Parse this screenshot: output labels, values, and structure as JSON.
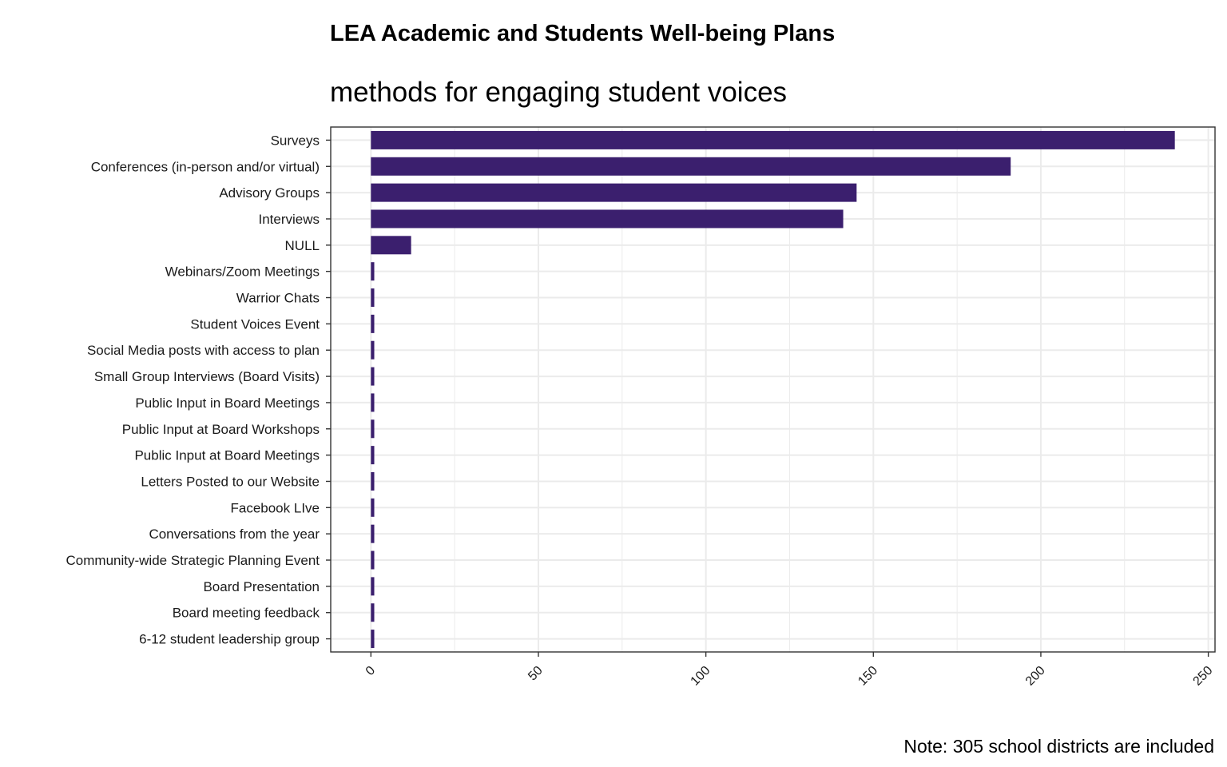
{
  "chart_data": {
    "type": "bar",
    "orientation": "horizontal",
    "title": "LEA Academic and Students Well-being Plans",
    "subtitle": "methods for engaging student voices",
    "caption": "Note: 305 school districts are included",
    "xlabel": "",
    "ylabel": "",
    "xlim": [
      -12,
      252
    ],
    "x_ticks": [
      0,
      50,
      100,
      150,
      200,
      250
    ],
    "grid": true,
    "legend": "none",
    "bar_color": "#3b1f6e",
    "categories": [
      "Surveys",
      "Conferences (in-person and/or virtual)",
      "Advisory Groups",
      "Interviews",
      "NULL",
      "Webinars/Zoom Meetings",
      "Warrior Chats",
      "Student Voices Event",
      "Social Media posts with access to plan",
      "Small Group Interviews (Board Visits)",
      "Public Input in Board Meetings",
      "Public Input at Board Workshops",
      "Public Input at Board Meetings",
      "Letters Posted to our Website",
      "Facebook LIve",
      "Conversations from the year",
      "Community-wide Strategic Planning Event",
      "Board Presentation",
      "Board meeting feedback",
      "6-12 student leadership group"
    ],
    "values": [
      240,
      191,
      145,
      141,
      12,
      1,
      1,
      1,
      1,
      1,
      1,
      1,
      1,
      1,
      1,
      1,
      1,
      1,
      1,
      1
    ]
  }
}
